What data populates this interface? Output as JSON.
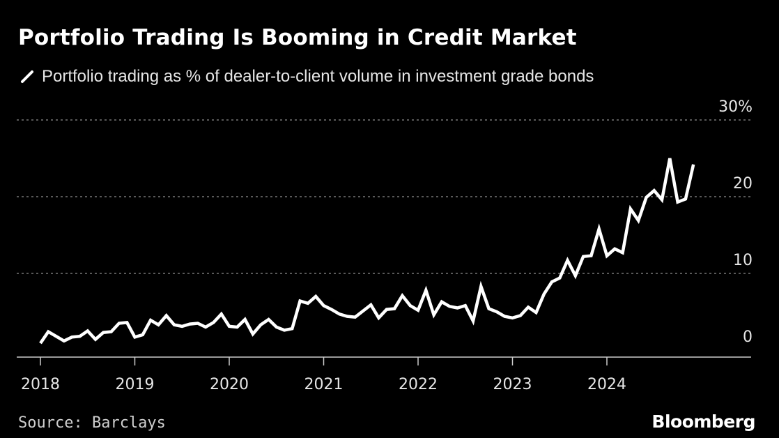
{
  "header": {
    "title": "Portfolio Trading Is Booming in Credit Market",
    "legend_label": "Portfolio trading as % of dealer-to-client volume in investment grade bonds"
  },
  "footer": {
    "source": "Source: Barclays",
    "brand": "Bloomberg"
  },
  "colors": {
    "background": "#000000",
    "line": "#ffffff",
    "gridline": "#777777"
  },
  "chart_data": {
    "type": "line",
    "title": "Portfolio Trading Is Booming in Credit Market",
    "xlabel": "",
    "ylabel": "",
    "ylim": [
      0,
      30
    ],
    "yticks": [
      {
        "value": 30,
        "label": "30%"
      },
      {
        "value": 20,
        "label": "20"
      },
      {
        "value": 10,
        "label": "10"
      },
      {
        "value": 0,
        "label": "0"
      }
    ],
    "xticks": [
      {
        "value": 2018,
        "label": "2018"
      },
      {
        "value": 2019,
        "label": "2019"
      },
      {
        "value": 2020,
        "label": "2020"
      },
      {
        "value": 2021,
        "label": "2021"
      },
      {
        "value": 2022,
        "label": "2022"
      },
      {
        "value": 2023,
        "label": "2023"
      },
      {
        "value": 2024,
        "label": "2024"
      }
    ],
    "grid": true,
    "series": [
      {
        "name": "Portfolio trading as % of dealer-to-client volume in investment grade bonds",
        "start": "2018-01",
        "frequency": "monthly",
        "values": [
          0.9,
          2.4,
          1.8,
          1.2,
          1.7,
          1.8,
          2.5,
          1.4,
          2.3,
          2.4,
          3.5,
          3.6,
          1.7,
          2.0,
          3.9,
          3.3,
          4.5,
          3.3,
          3.1,
          3.4,
          3.5,
          3.0,
          3.6,
          4.7,
          3.1,
          3.0,
          4.0,
          2.1,
          3.3,
          4.0,
          3.0,
          2.6,
          2.8,
          6.4,
          6.1,
          7.0,
          5.8,
          5.3,
          4.7,
          4.4,
          4.3,
          5.1,
          5.9,
          4.2,
          5.3,
          5.4,
          7.1,
          5.8,
          5.2,
          7.8,
          4.6,
          6.3,
          5.7,
          5.5,
          5.8,
          3.8,
          8.3,
          5.4,
          5.0,
          4.4,
          4.2,
          4.5,
          5.6,
          4.9,
          7.3,
          8.9,
          9.4,
          11.7,
          9.7,
          12.2,
          12.3,
          15.8,
          12.3,
          13.2,
          12.7,
          18.4,
          16.9,
          19.9,
          20.8,
          19.6,
          25.0,
          19.3,
          19.7,
          24.2
        ]
      }
    ]
  }
}
